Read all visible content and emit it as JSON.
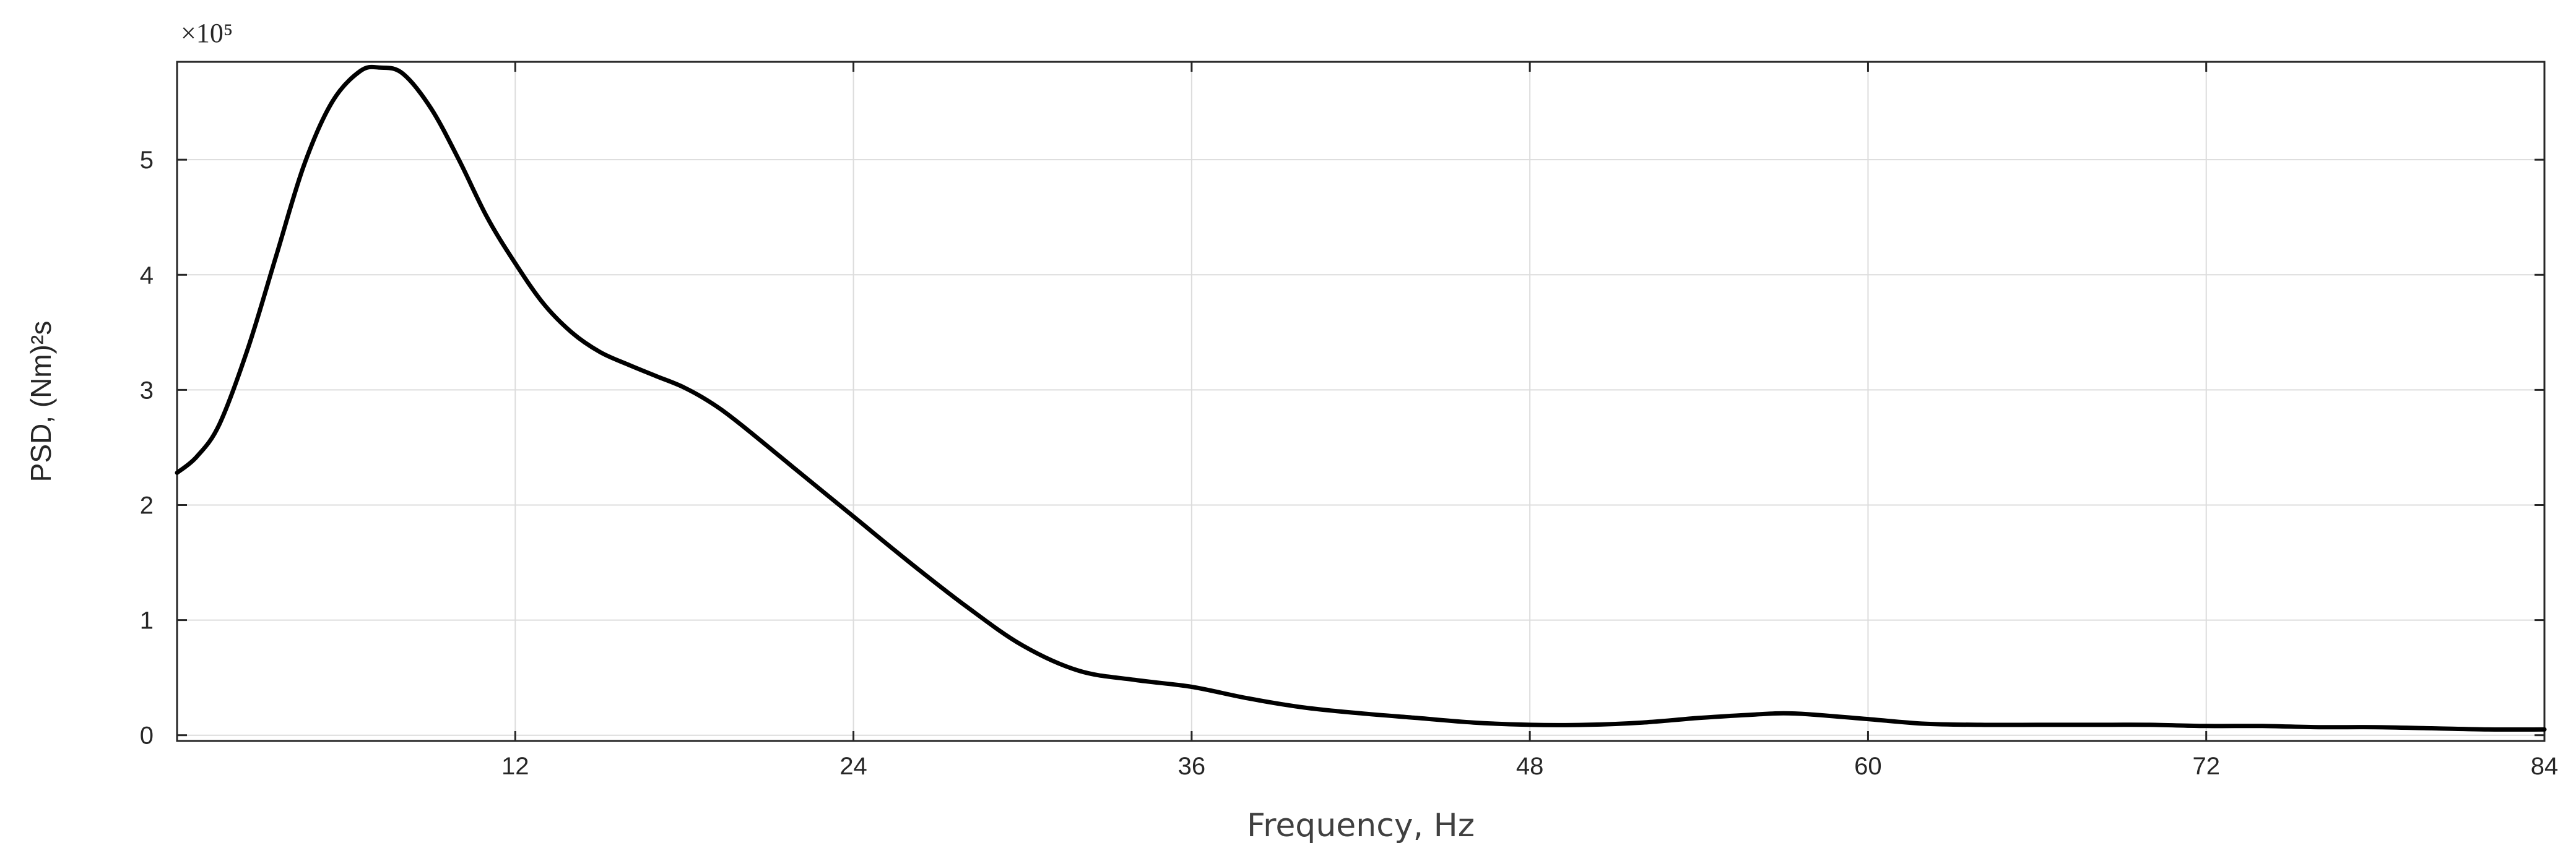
{
  "chart_data": {
    "type": "line",
    "title": "",
    "xlabel": "Frequency, Hz",
    "ylabel": "PSD, (Nm)²s",
    "y_multiplier": "×10⁵",
    "xlim": [
      0,
      84
    ],
    "ylim": [
      -0.05,
      5.85
    ],
    "x_ticks": [
      12,
      24,
      36,
      48,
      60,
      72,
      84
    ],
    "y_ticks": [
      0,
      1,
      2,
      3,
      4,
      5
    ],
    "grid": true,
    "legend": "none",
    "line_color": "#000000",
    "series": [
      {
        "x": [
          0,
          0.7,
          1.5,
          2.5,
          3.5,
          4.5,
          5.5,
          6.5,
          7.2,
          8,
          9,
          10,
          11,
          12,
          13,
          14,
          15,
          16,
          17,
          18,
          19,
          20,
          22,
          24,
          26,
          28,
          30,
          32,
          34,
          36,
          38,
          40,
          42,
          44,
          46,
          48,
          50,
          52,
          54,
          56,
          57,
          58,
          60,
          62,
          64,
          66,
          68,
          70,
          72,
          74,
          76,
          78,
          80,
          82,
          84
        ],
        "y": [
          2.28,
          2.42,
          2.7,
          3.35,
          4.15,
          4.95,
          5.5,
          5.77,
          5.8,
          5.75,
          5.45,
          5.0,
          4.5,
          4.1,
          3.75,
          3.5,
          3.33,
          3.22,
          3.12,
          3.02,
          2.88,
          2.7,
          2.3,
          1.9,
          1.5,
          1.12,
          0.78,
          0.56,
          0.48,
          0.42,
          0.32,
          0.24,
          0.19,
          0.15,
          0.11,
          0.09,
          0.09,
          0.11,
          0.15,
          0.18,
          0.19,
          0.18,
          0.14,
          0.1,
          0.09,
          0.09,
          0.09,
          0.09,
          0.08,
          0.08,
          0.07,
          0.07,
          0.06,
          0.05,
          0.05
        ]
      }
    ]
  }
}
